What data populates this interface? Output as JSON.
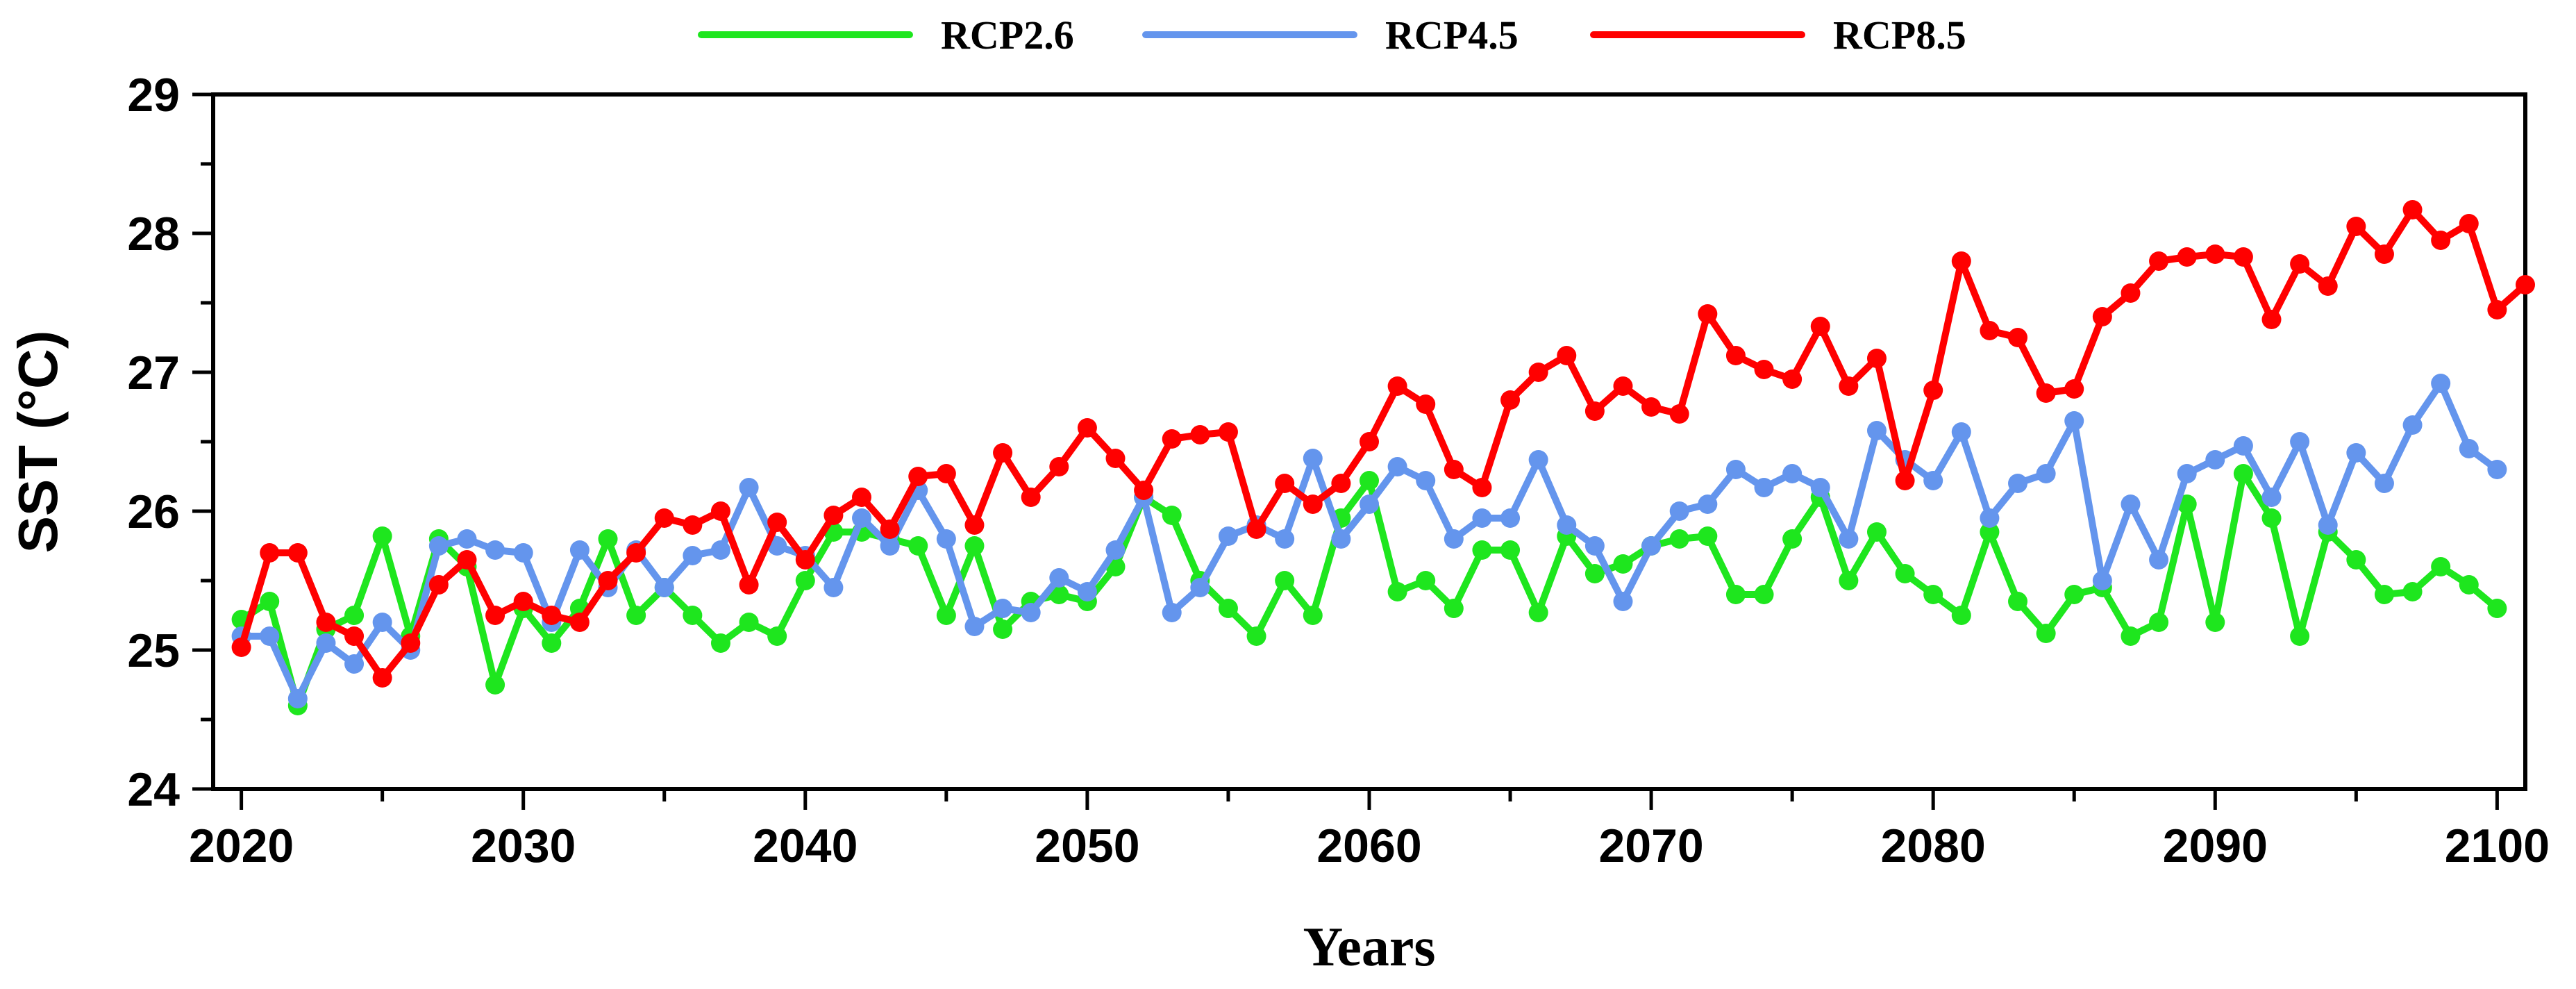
{
  "chart_data": {
    "type": "line",
    "title": "",
    "xlabel": "Years",
    "ylabel": "SST (°C)",
    "xlim": [
      2019,
      2101
    ],
    "ylim": [
      24,
      29
    ],
    "x_ticks": [
      2020,
      2030,
      2040,
      2050,
      2060,
      2070,
      2080,
      2090,
      2100
    ],
    "y_ticks": [
      24,
      25,
      26,
      27,
      28,
      29
    ],
    "x_tick_labels": [
      "2020",
      "2030",
      "2040",
      "2050",
      "2060",
      "2070",
      "2080",
      "2090",
      "2100"
    ],
    "y_tick_labels": [
      "24",
      "25",
      "26",
      "27",
      "28",
      "29"
    ],
    "grid": false,
    "legend_position": "top-center",
    "x_start": 2020,
    "series": [
      {
        "name": "RCP2.6",
        "color": "#1ee61e",
        "values": [
          25.22,
          25.35,
          24.6,
          25.15,
          25.25,
          25.82,
          25.1,
          25.8,
          25.6,
          24.75,
          25.3,
          25.05,
          25.3,
          25.8,
          25.25,
          25.45,
          25.25,
          25.05,
          25.2,
          25.1,
          25.5,
          25.85,
          25.85,
          25.8,
          25.75,
          25.25,
          25.75,
          25.15,
          25.35,
          25.4,
          25.35,
          25.6,
          26.1,
          25.97,
          25.5,
          25.3,
          25.1,
          25.5,
          25.25,
          25.95,
          26.22,
          25.42,
          25.5,
          25.3,
          25.72,
          25.72,
          25.27,
          25.82,
          25.55,
          25.62,
          25.75,
          25.8,
          25.82,
          25.4,
          25.4,
          25.8,
          26.1,
          25.5,
          25.85,
          25.55,
          25.4,
          25.25,
          25.85,
          25.35,
          25.12,
          25.4,
          25.45,
          25.1,
          25.2,
          26.05,
          25.2,
          26.27,
          25.95,
          25.1,
          25.85,
          25.65,
          25.4,
          25.42,
          25.6,
          25.47,
          25.3
        ]
      },
      {
        "name": "RCP4.5",
        "color": "#6495ed",
        "values": [
          25.1,
          25.1,
          24.65,
          25.05,
          24.9,
          25.2,
          25.0,
          25.75,
          25.8,
          25.72,
          25.7,
          25.2,
          25.72,
          25.45,
          25.72,
          25.45,
          25.68,
          25.72,
          26.17,
          25.75,
          25.68,
          25.45,
          25.95,
          25.75,
          26.15,
          25.8,
          25.17,
          25.3,
          25.27,
          25.52,
          25.42,
          25.72,
          26.1,
          25.27,
          25.45,
          25.82,
          25.9,
          25.8,
          26.38,
          25.8,
          26.05,
          26.32,
          26.22,
          25.8,
          25.95,
          25.95,
          26.37,
          25.9,
          25.75,
          25.35,
          25.75,
          26.0,
          26.05,
          26.3,
          26.17,
          26.27,
          26.17,
          25.8,
          26.58,
          26.37,
          26.22,
          26.57,
          25.95,
          26.2,
          26.27,
          26.65,
          25.5,
          26.05,
          25.65,
          26.27,
          26.37,
          26.47,
          26.1,
          26.5,
          25.9,
          26.42,
          26.2,
          26.62,
          26.92,
          26.45,
          26.3
        ]
      },
      {
        "name": "RCP8.5",
        "color": "#ff0000",
        "values": [
          25.02,
          25.7,
          25.7,
          25.2,
          25.1,
          24.8,
          25.05,
          25.47,
          25.65,
          25.25,
          25.35,
          25.25,
          25.2,
          25.5,
          25.7,
          25.95,
          25.9,
          26.0,
          25.47,
          25.92,
          25.65,
          25.97,
          26.1,
          25.87,
          26.25,
          26.27,
          25.9,
          26.42,
          26.1,
          26.32,
          26.6,
          26.38,
          26.15,
          26.52,
          26.55,
          26.57,
          25.87,
          26.2,
          26.05,
          26.2,
          26.5,
          26.9,
          26.77,
          26.3,
          26.17,
          26.8,
          27.0,
          27.12,
          26.72,
          26.9,
          26.75,
          26.7,
          27.42,
          27.12,
          27.02,
          26.95,
          27.33,
          26.9,
          27.1,
          26.22,
          26.87,
          27.8,
          27.3,
          27.25,
          26.85,
          26.88,
          27.4,
          27.57,
          27.8,
          27.83,
          27.85,
          27.83,
          27.38,
          27.78,
          27.62,
          28.05,
          27.85,
          28.17,
          27.95,
          28.07,
          27.45,
          27.63
        ]
      }
    ]
  }
}
